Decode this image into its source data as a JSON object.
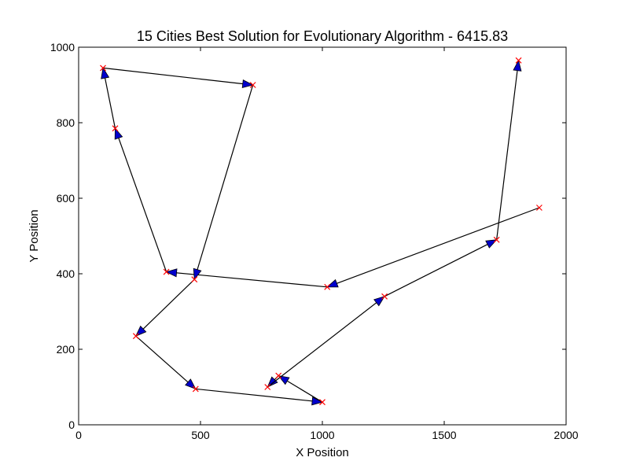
{
  "chart_data": {
    "type": "line",
    "title": "15 Cities Best Solution for Evolutionary Algorithm - 6415.83",
    "xlabel": "X Position",
    "ylabel": "Y Position",
    "xlim": [
      0,
      2000
    ],
    "ylim": [
      0,
      1000
    ],
    "xticks": [
      "0",
      "500",
      "1000",
      "1500",
      "2000"
    ],
    "yticks": [
      "0",
      "200",
      "400",
      "600",
      "800",
      "1000"
    ],
    "xtick_values": [
      0,
      500,
      1000,
      1500,
      2000
    ],
    "ytick_values": [
      0,
      200,
      400,
      600,
      800,
      1000
    ],
    "grid": false,
    "colors": {
      "edge": "#000000",
      "arrow": "#0000cc",
      "city_marker": "#ff0000"
    },
    "route": [
      {
        "x": 1890,
        "y": 575
      },
      {
        "x": 1020,
        "y": 365
      },
      {
        "x": 360,
        "y": 405
      },
      {
        "x": 150,
        "y": 785
      },
      {
        "x": 100,
        "y": 945
      },
      {
        "x": 715,
        "y": 900
      },
      {
        "x": 475,
        "y": 385
      },
      {
        "x": 235,
        "y": 235
      },
      {
        "x": 480,
        "y": 95
      },
      {
        "x": 1000,
        "y": 60
      },
      {
        "x": 820,
        "y": 130
      },
      {
        "x": 775,
        "y": 100
      },
      {
        "x": 1255,
        "y": 340
      },
      {
        "x": 1715,
        "y": 490
      },
      {
        "x": 1805,
        "y": 965
      }
    ]
  }
}
